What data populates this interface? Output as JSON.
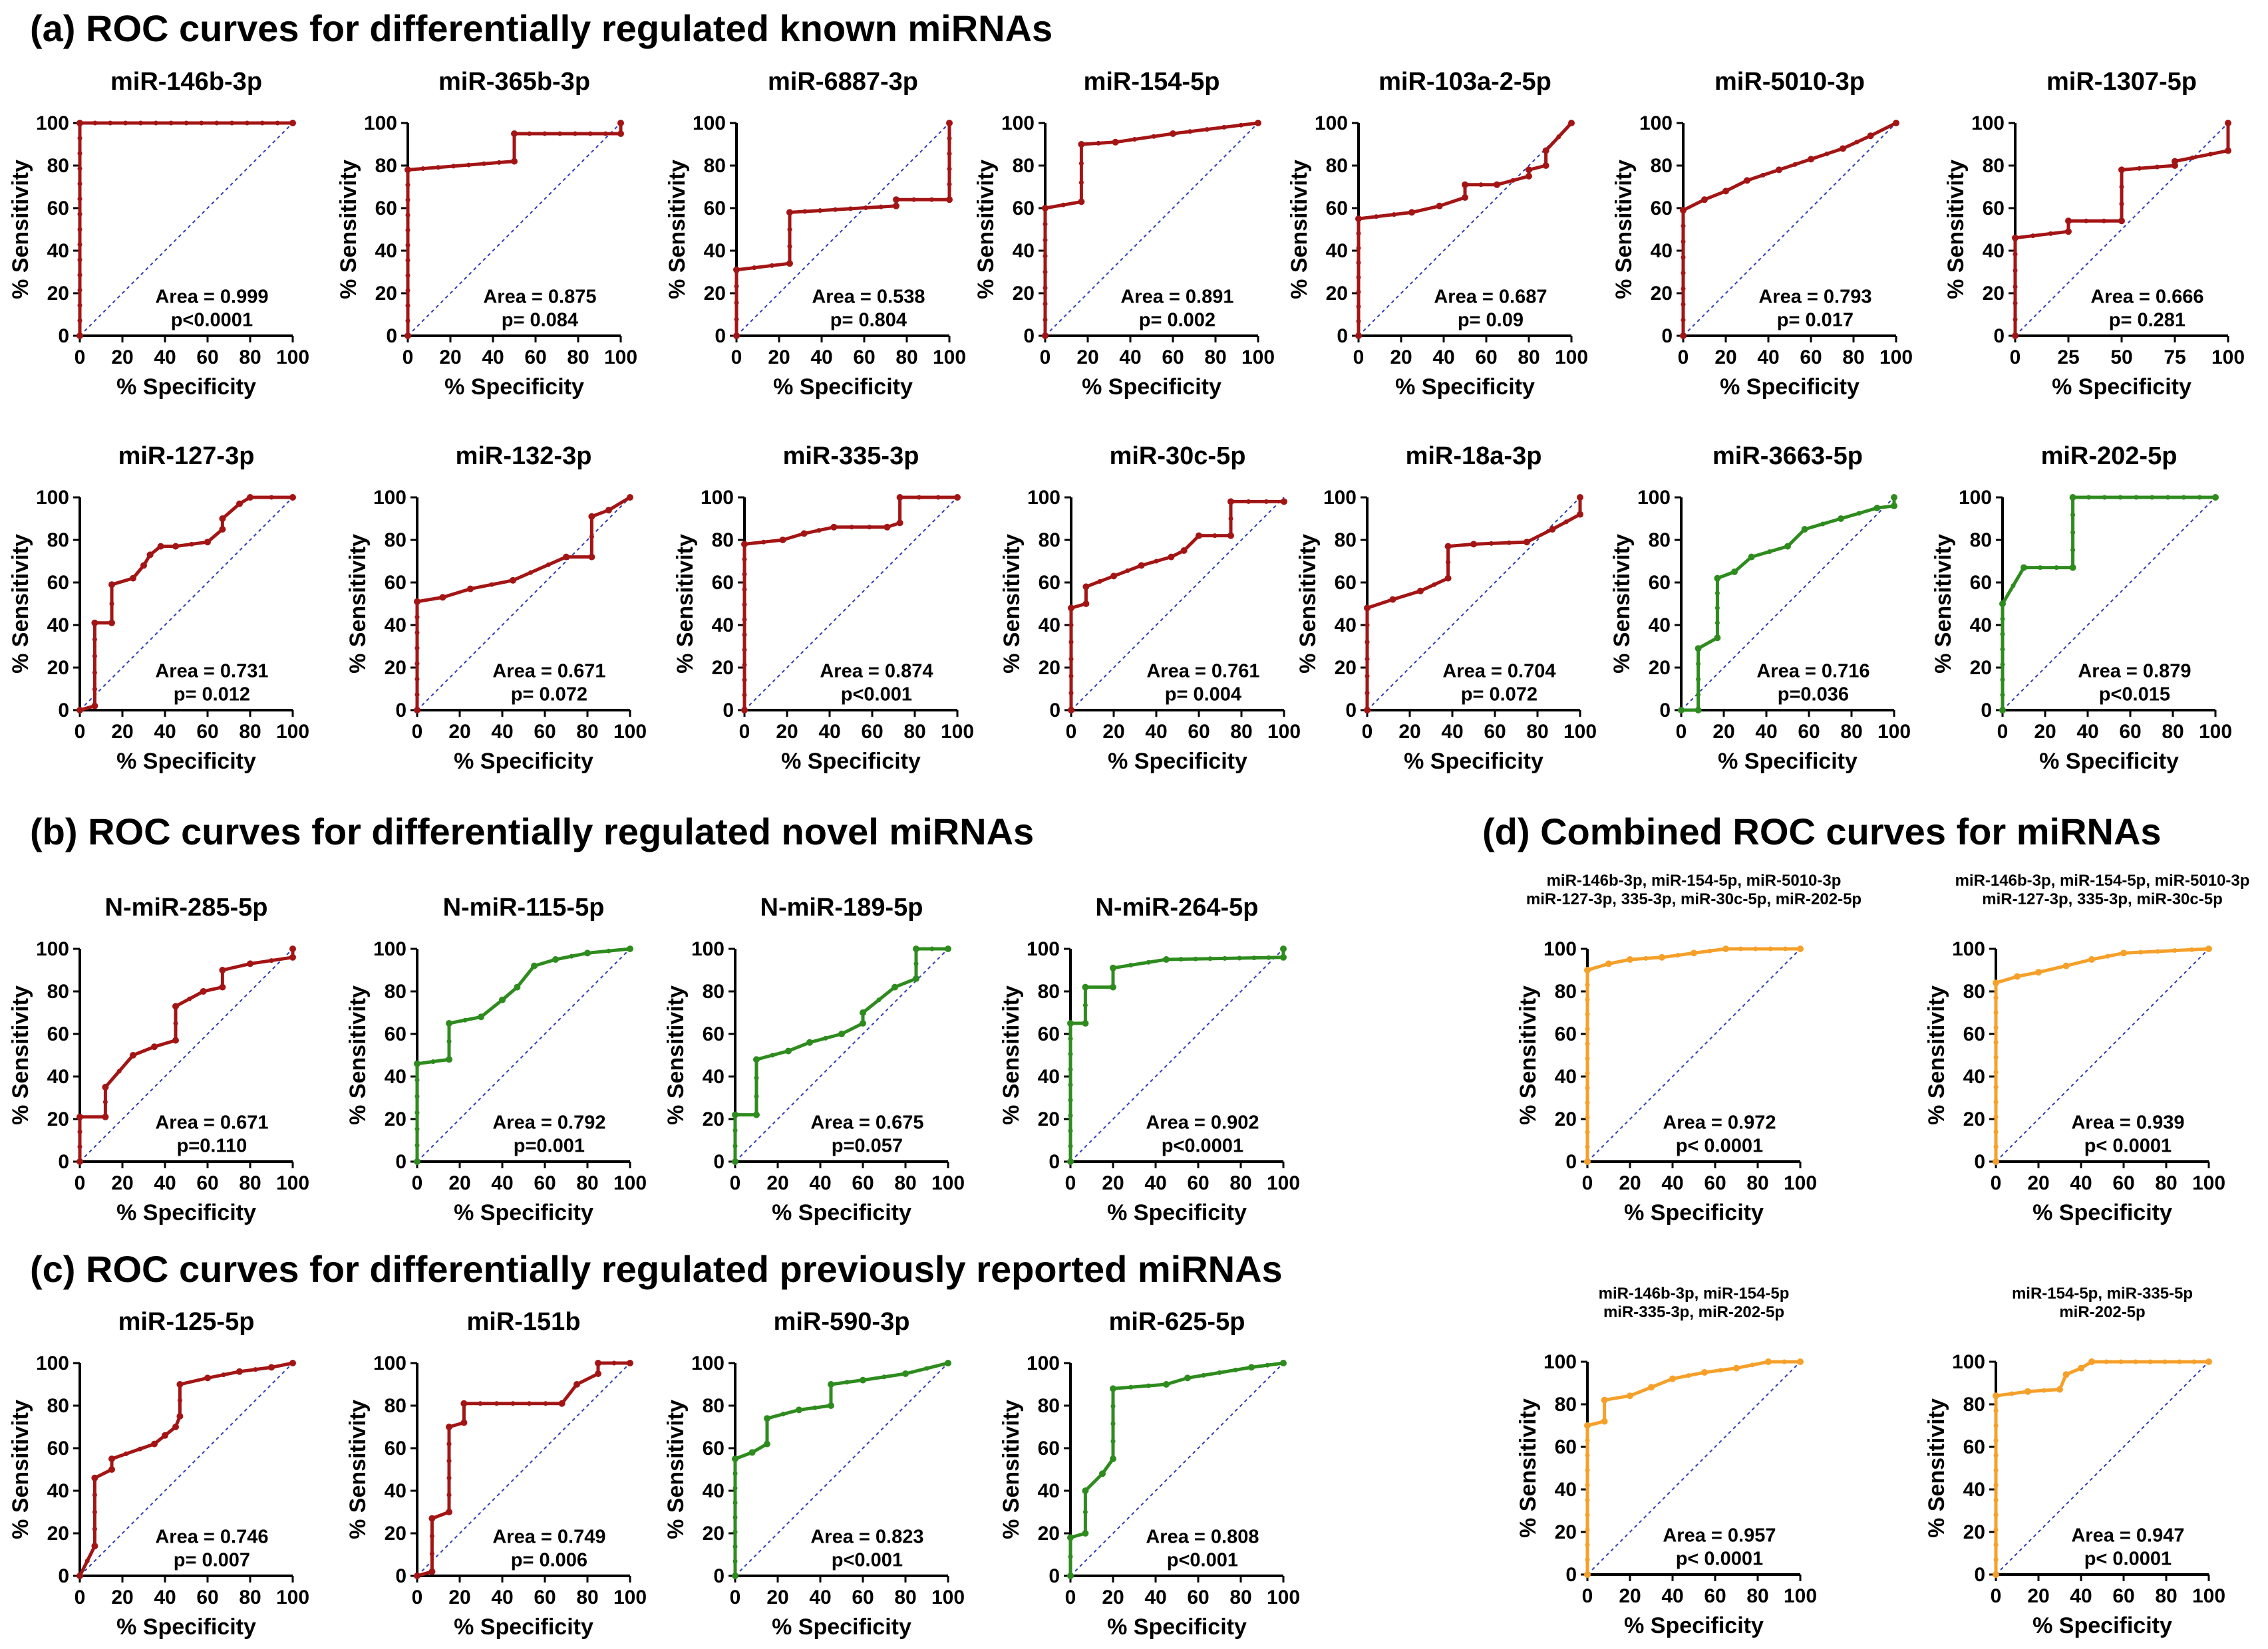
{
  "section_titles": {
    "a": "(a) ROC curves for differentially regulated known miRNAs",
    "b": "(b) ROC curves for differentially regulated novel miRNAs",
    "c": "(c) ROC curves for differentially regulated previously reported miRNAs",
    "d": "(d) Combined ROC curves for miRNAs"
  },
  "colors": {
    "red": "#a31515",
    "green": "#2e8b1e",
    "orange": "#f5a02a",
    "diagonal": "#2c3bb5"
  },
  "chart_data": [
    {
      "id": "a1",
      "type": "line",
      "title": [
        "miR-146b-3p"
      ],
      "color": "red",
      "area": "Area = 0.999",
      "p": "p<0.0001",
      "x": [
        0,
        0,
        100
      ],
      "y": [
        0,
        100,
        100
      ],
      "xlabel": "% Specificity",
      "ylabel": "% Sensitivity",
      "xlim": [
        0,
        100
      ],
      "ylim": [
        0,
        100
      ],
      "ticks": [
        "0",
        "20",
        "40",
        "60",
        "80",
        "100"
      ]
    },
    {
      "id": "a2",
      "type": "line",
      "title": [
        "miR-365b-3p"
      ],
      "color": "red",
      "area": "Area = 0.875",
      "p": "p= 0.084",
      "x": [
        0,
        0,
        50,
        50,
        100,
        100
      ],
      "y": [
        0,
        78,
        82,
        95,
        95,
        100
      ],
      "xlabel": "% Specificity",
      "ylabel": "% Sensitivity",
      "xlim": [
        0,
        100
      ],
      "ylim": [
        0,
        100
      ],
      "ticks": [
        "0",
        "20",
        "40",
        "60",
        "80",
        "100"
      ]
    },
    {
      "id": "a3",
      "type": "line",
      "title": [
        "miR-6887-3p"
      ],
      "color": "red",
      "area": "Area = 0.538",
      "p": "p= 0.804",
      "x": [
        0,
        0,
        25,
        25,
        75,
        75,
        100,
        100
      ],
      "y": [
        0,
        31,
        34,
        58,
        61,
        64,
        64,
        100
      ],
      "xlabel": "% Specificity",
      "ylabel": "% Sensitivity",
      "xlim": [
        0,
        100
      ],
      "ylim": [
        0,
        100
      ],
      "ticks": [
        "0",
        "20",
        "40",
        "60",
        "80",
        "100"
      ]
    },
    {
      "id": "a4",
      "type": "line",
      "title": [
        "miR-154-5p"
      ],
      "color": "red",
      "area": "Area = 0.891",
      "p": "p= 0.002",
      "x": [
        0,
        0,
        17,
        17,
        33,
        60,
        100
      ],
      "y": [
        0,
        60,
        63,
        90,
        91,
        95,
        100
      ],
      "xlabel": "% Specificity",
      "ylabel": "% Sensitivity",
      "xlim": [
        0,
        100
      ],
      "ylim": [
        0,
        100
      ],
      "ticks": [
        "0",
        "20",
        "40",
        "60",
        "80",
        "100"
      ]
    },
    {
      "id": "a5",
      "type": "line",
      "title": [
        "miR-103a-2-5p"
      ],
      "color": "red",
      "area": "Area = 0.687",
      "p": "p= 0.09",
      "x": [
        0,
        0,
        25,
        38,
        50,
        50,
        65,
        80,
        80,
        88,
        88,
        100
      ],
      "y": [
        0,
        55,
        58,
        61,
        65,
        71,
        71,
        75,
        78,
        80,
        87,
        100
      ],
      "xlabel": "% Specificity",
      "ylabel": "% Sensitivity",
      "xlim": [
        0,
        100
      ],
      "ylim": [
        0,
        100
      ],
      "ticks": [
        "0",
        "20",
        "40",
        "60",
        "80",
        "100"
      ]
    },
    {
      "id": "a6",
      "type": "line",
      "title": [
        "miR-5010-3p"
      ],
      "color": "red",
      "area": "Area = 0.793",
      "p": "p= 0.017",
      "x": [
        0,
        0,
        10,
        20,
        30,
        45,
        60,
        75,
        88,
        100
      ],
      "y": [
        0,
        59,
        64,
        68,
        73,
        78,
        83,
        88,
        94,
        100
      ],
      "xlabel": "% Specificity",
      "ylabel": "% Sensitivity",
      "xlim": [
        0,
        100
      ],
      "ylim": [
        0,
        100
      ],
      "ticks": [
        "0",
        "20",
        "40",
        "60",
        "80",
        "100"
      ]
    },
    {
      "id": "a7",
      "type": "line",
      "title": [
        "miR-1307-5p"
      ],
      "color": "red",
      "area": "Area = 0.666",
      "p": "p= 0.281",
      "x": [
        0,
        0,
        25,
        25,
        50,
        50,
        75,
        75,
        100,
        100
      ],
      "y": [
        0,
        46,
        49,
        54,
        54,
        78,
        80,
        82,
        87,
        100
      ],
      "xlabel": "% Specificity",
      "ylabel": "% Sensitivity",
      "xlim": [
        0,
        100
      ],
      "ylim": [
        0,
        100
      ],
      "ticks": [
        "0",
        "25",
        "50",
        "75",
        "100"
      ]
    },
    {
      "id": "a8",
      "type": "line",
      "title": [
        "miR-127-3p"
      ],
      "color": "red",
      "area": "Area = 0.731",
      "p": "p= 0.012",
      "x": [
        0,
        7,
        7,
        15,
        15,
        25,
        30,
        33,
        38,
        45,
        60,
        67,
        67,
        75,
        80,
        100
      ],
      "y": [
        0,
        2,
        41,
        41,
        59,
        62,
        68,
        73,
        77,
        77,
        79,
        85,
        90,
        97,
        100,
        100
      ],
      "xlabel": "% Specificity",
      "ylabel": "% Sensitivity",
      "xlim": [
        0,
        100
      ],
      "ylim": [
        0,
        100
      ],
      "ticks": [
        "0",
        "20",
        "40",
        "60",
        "80",
        "100"
      ]
    },
    {
      "id": "a9",
      "type": "line",
      "title": [
        "miR-132-3p"
      ],
      "color": "red",
      "area": "Area = 0.671",
      "p": "p= 0.072",
      "x": [
        0,
        0,
        12,
        25,
        45,
        70,
        82,
        82,
        90,
        100
      ],
      "y": [
        0,
        51,
        53,
        57,
        61,
        72,
        72,
        91,
        94,
        100
      ],
      "xlabel": "% Specificity",
      "ylabel": "% Sensitivity",
      "xlim": [
        0,
        100
      ],
      "ylim": [
        0,
        100
      ],
      "ticks": [
        "0",
        "20",
        "40",
        "60",
        "80",
        "100"
      ]
    },
    {
      "id": "a10",
      "type": "line",
      "title": [
        "miR-335-3p"
      ],
      "color": "red",
      "area": "Area = 0.874",
      "p": "p<0.001",
      "x": [
        0,
        0,
        18,
        28,
        42,
        67,
        73,
        73,
        100
      ],
      "y": [
        0,
        78,
        80,
        83,
        86,
        86,
        88,
        100,
        100
      ],
      "xlabel": "% Specificity",
      "ylabel": "% Sensitivity",
      "xlim": [
        0,
        100
      ],
      "ylim": [
        0,
        100
      ],
      "ticks": [
        "0",
        "20",
        "40",
        "60",
        "80",
        "100"
      ]
    },
    {
      "id": "a11",
      "type": "line",
      "title": [
        "miR-30c-5p"
      ],
      "color": "red",
      "area": "Area = 0.761",
      "p": "p= 0.004",
      "x": [
        0,
        0,
        7,
        7,
        20,
        33,
        47,
        53,
        60,
        75,
        75,
        100
      ],
      "y": [
        0,
        48,
        50,
        58,
        63,
        68,
        72,
        75,
        82,
        82,
        98,
        98
      ],
      "xlabel": "% Specificity",
      "ylabel": "% Sensitivity",
      "xlim": [
        0,
        100
      ],
      "ylim": [
        0,
        100
      ],
      "ticks": [
        "0",
        "20",
        "40",
        "60",
        "80",
        "100"
      ]
    },
    {
      "id": "a12",
      "type": "line",
      "title": [
        "miR-18a-3p"
      ],
      "color": "red",
      "area": "Area = 0.704",
      "p": "p= 0.072",
      "x": [
        0,
        0,
        12,
        25,
        38,
        38,
        50,
        75,
        87,
        100,
        100
      ],
      "y": [
        0,
        48,
        52,
        56,
        62,
        77,
        78,
        79,
        85,
        92,
        100
      ],
      "xlabel": "% Specificity",
      "ylabel": "% Sensitivity",
      "xlim": [
        0,
        100
      ],
      "ylim": [
        0,
        100
      ],
      "ticks": [
        "0",
        "20",
        "40",
        "60",
        "80",
        "100"
      ]
    },
    {
      "id": "a13",
      "type": "line",
      "title": [
        "miR-3663-5p"
      ],
      "color": "green",
      "area": "Area = 0.716",
      "p": "p=0.036",
      "x": [
        0,
        8,
        8,
        17,
        17,
        25,
        33,
        50,
        58,
        75,
        92,
        100,
        100
      ],
      "y": [
        0,
        0,
        29,
        34,
        62,
        65,
        72,
        77,
        85,
        90,
        95,
        96,
        100
      ],
      "xlabel": "% Specificity",
      "ylabel": "% Sensitivity",
      "xlim": [
        0,
        100
      ],
      "ylim": [
        0,
        100
      ],
      "ticks": [
        "0",
        "20",
        "40",
        "60",
        "80",
        "100"
      ]
    },
    {
      "id": "a14",
      "type": "line",
      "title": [
        "miR-202-5p"
      ],
      "color": "green",
      "area": "Area = 0.879",
      "p": "p<0.015",
      "x": [
        0,
        0,
        10,
        33,
        33,
        100
      ],
      "y": [
        0,
        50,
        67,
        67,
        100,
        100
      ],
      "xlabel": "% Specificity",
      "ylabel": "% Sensitivity",
      "xlim": [
        0,
        100
      ],
      "ylim": [
        0,
        100
      ],
      "ticks": [
        "0",
        "20",
        "40",
        "60",
        "80",
        "100"
      ]
    },
    {
      "id": "b1",
      "type": "line",
      "title": [
        "N-miR-285-5p"
      ],
      "color": "red",
      "area": "Area = 0.671",
      "p": "p=0.110",
      "x": [
        0,
        0,
        12,
        12,
        25,
        35,
        45,
        45,
        58,
        67,
        67,
        80,
        100,
        100
      ],
      "y": [
        0,
        21,
        21,
        35,
        50,
        54,
        57,
        73,
        80,
        82,
        90,
        93,
        96,
        100
      ],
      "xlabel": "% Specificity",
      "ylabel": "% Sensitivity",
      "xlim": [
        0,
        100
      ],
      "ylim": [
        0,
        100
      ],
      "ticks": [
        "0",
        "20",
        "40",
        "60",
        "80",
        "100"
      ]
    },
    {
      "id": "b2",
      "type": "line",
      "title": [
        "N-miR-115-5p"
      ],
      "color": "green",
      "area": "Area = 0.792",
      "p": "p=0.001",
      "x": [
        0,
        0,
        15,
        15,
        30,
        40,
        47,
        55,
        65,
        80,
        100
      ],
      "y": [
        0,
        46,
        48,
        65,
        68,
        76,
        82,
        92,
        95,
        98,
        100
      ],
      "xlabel": "% Specificity",
      "ylabel": "% Sensitivity",
      "xlim": [
        0,
        100
      ],
      "ylim": [
        0,
        100
      ],
      "ticks": [
        "0",
        "20",
        "40",
        "60",
        "80",
        "100"
      ]
    },
    {
      "id": "b3",
      "type": "line",
      "title": [
        "N-miR-189-5p"
      ],
      "color": "green",
      "area": "Area = 0.675",
      "p": "p=0.057",
      "x": [
        0,
        0,
        10,
        10,
        25,
        35,
        50,
        60,
        60,
        75,
        85,
        85,
        100
      ],
      "y": [
        0,
        22,
        22,
        48,
        52,
        56,
        60,
        65,
        70,
        82,
        86,
        100,
        100
      ],
      "xlabel": "% Specificity",
      "ylabel": "% Sensitivity",
      "xlim": [
        0,
        100
      ],
      "ylim": [
        0,
        100
      ],
      "ticks": [
        "0",
        "20",
        "40",
        "60",
        "80",
        "100"
      ]
    },
    {
      "id": "b4",
      "type": "line",
      "title": [
        "N-miR-264-5p"
      ],
      "color": "green",
      "area": "Area = 0.902",
      "p": "p<0.0001",
      "x": [
        0,
        0,
        7,
        7,
        20,
        20,
        45,
        100,
        100
      ],
      "y": [
        0,
        65,
        65,
        82,
        82,
        91,
        95,
        96,
        100
      ],
      "xlabel": "% Specificity",
      "ylabel": "% Sensitivity",
      "xlim": [
        0,
        100
      ],
      "ylim": [
        0,
        100
      ],
      "ticks": [
        "0",
        "20",
        "40",
        "60",
        "80",
        "100"
      ]
    },
    {
      "id": "c1",
      "type": "line",
      "title": [
        "miR-125-5p"
      ],
      "color": "red",
      "area": "Area = 0.746",
      "p": "p= 0.007",
      "x": [
        0,
        7,
        7,
        15,
        15,
        35,
        40,
        45,
        47,
        47,
        60,
        75,
        90,
        100
      ],
      "y": [
        0,
        14,
        46,
        50,
        55,
        62,
        66,
        70,
        75,
        90,
        93,
        96,
        98,
        100
      ],
      "xlabel": "% Specificity",
      "ylabel": "% Sensitivity",
      "xlim": [
        0,
        100
      ],
      "ylim": [
        0,
        100
      ],
      "ticks": [
        "0",
        "20",
        "40",
        "60",
        "80",
        "100"
      ]
    },
    {
      "id": "c2",
      "type": "line",
      "title": [
        "miR-151b"
      ],
      "color": "red",
      "area": "Area = 0.749",
      "p": "p= 0.006",
      "x": [
        0,
        7,
        7,
        15,
        15,
        22,
        22,
        68,
        75,
        85,
        85,
        100
      ],
      "y": [
        0,
        2,
        27,
        30,
        70,
        72,
        81,
        81,
        90,
        95,
        100,
        100
      ],
      "xlabel": "% Specificity",
      "ylabel": "% Sensitivity",
      "xlim": [
        0,
        100
      ],
      "ylim": [
        0,
        100
      ],
      "ticks": [
        "0",
        "20",
        "40",
        "60",
        "80",
        "100"
      ]
    },
    {
      "id": "c3",
      "type": "line",
      "title": [
        "miR-590-3p"
      ],
      "color": "green",
      "area": "Area = 0.823",
      "p": "p<0.001",
      "x": [
        0,
        0,
        8,
        15,
        15,
        30,
        45,
        45,
        60,
        80,
        100
      ],
      "y": [
        0,
        55,
        58,
        62,
        74,
        78,
        80,
        90,
        92,
        95,
        100
      ],
      "xlabel": "% Specificity",
      "ylabel": "% Sensitivity",
      "xlim": [
        0,
        100
      ],
      "ylim": [
        0,
        100
      ],
      "ticks": [
        "0",
        "20",
        "40",
        "60",
        "80",
        "100"
      ]
    },
    {
      "id": "c4",
      "type": "line",
      "title": [
        "miR-625-5p"
      ],
      "color": "green",
      "area": "Area = 0.808",
      "p": "p<0.001",
      "x": [
        0,
        0,
        7,
        7,
        15,
        20,
        20,
        45,
        55,
        85,
        100
      ],
      "y": [
        0,
        18,
        20,
        40,
        48,
        55,
        88,
        90,
        93,
        98,
        100
      ],
      "xlabel": "% Specificity",
      "ylabel": "% Sensitivity",
      "xlim": [
        0,
        100
      ],
      "ylim": [
        0,
        100
      ],
      "ticks": [
        "0",
        "20",
        "40",
        "60",
        "80",
        "100"
      ]
    },
    {
      "id": "d1",
      "type": "line",
      "title": [
        "miR-146b-3p, miR-154-5p, miR-5010-3p",
        "miR-127-3p, 335-3p, miR-30c-5p, miR-202-5p"
      ],
      "color": "orange",
      "area": "Area = 0.972",
      "p": "p< 0.0001",
      "x": [
        0,
        0,
        10,
        20,
        35,
        50,
        65,
        100
      ],
      "y": [
        0,
        90,
        93,
        95,
        96,
        98,
        100,
        100
      ],
      "xlabel": "% Specificity",
      "ylabel": "% Sensitivity",
      "xlim": [
        0,
        100
      ],
      "ylim": [
        0,
        100
      ],
      "ticks": [
        "0",
        "20",
        "40",
        "60",
        "80",
        "100"
      ]
    },
    {
      "id": "d2",
      "type": "line",
      "title": [
        "miR-146b-3p, miR-154-5p, miR-5010-3p",
        "miR-127-3p, 335-3p, miR-30c-5p"
      ],
      "color": "orange",
      "area": "Area = 0.939",
      "p": "p< 0.0001",
      "x": [
        0,
        0,
        10,
        20,
        33,
        45,
        60,
        100
      ],
      "y": [
        0,
        84,
        87,
        89,
        92,
        95,
        98,
        100
      ],
      "xlabel": "% Specificity",
      "ylabel": "% Sensitivity",
      "xlim": [
        0,
        100
      ],
      "ylim": [
        0,
        100
      ],
      "ticks": [
        "0",
        "20",
        "40",
        "60",
        "80",
        "100"
      ]
    },
    {
      "id": "d3",
      "type": "line",
      "title": [
        "miR-146b-3p, miR-154-5p",
        "miR-335-3p, miR-202-5p"
      ],
      "color": "orange",
      "area": "Area = 0.957",
      "p": "p< 0.0001",
      "x": [
        0,
        0,
        8,
        8,
        20,
        30,
        40,
        55,
        70,
        85,
        100
      ],
      "y": [
        0,
        70,
        72,
        82,
        84,
        88,
        92,
        95,
        97,
        100,
        100
      ],
      "xlabel": "% Specificity",
      "ylabel": "% Sensitivity",
      "xlim": [
        0,
        100
      ],
      "ylim": [
        0,
        100
      ],
      "ticks": [
        "0",
        "20",
        "40",
        "60",
        "80",
        "100"
      ]
    },
    {
      "id": "d4",
      "type": "line",
      "title": [
        "miR-154-5p, miR-335-5p",
        "miR-202-5p"
      ],
      "color": "orange",
      "area": "Area = 0.947",
      "p": "p< 0.0001",
      "x": [
        0,
        0,
        15,
        30,
        33,
        40,
        45,
        100
      ],
      "y": [
        0,
        84,
        86,
        87,
        94,
        97,
        100,
        100
      ],
      "xlabel": "% Specificity",
      "ylabel": "% Sensitivity",
      "xlim": [
        0,
        100
      ],
      "ylim": [
        0,
        100
      ],
      "ticks": [
        "0",
        "20",
        "40",
        "60",
        "80",
        "100"
      ]
    }
  ]
}
